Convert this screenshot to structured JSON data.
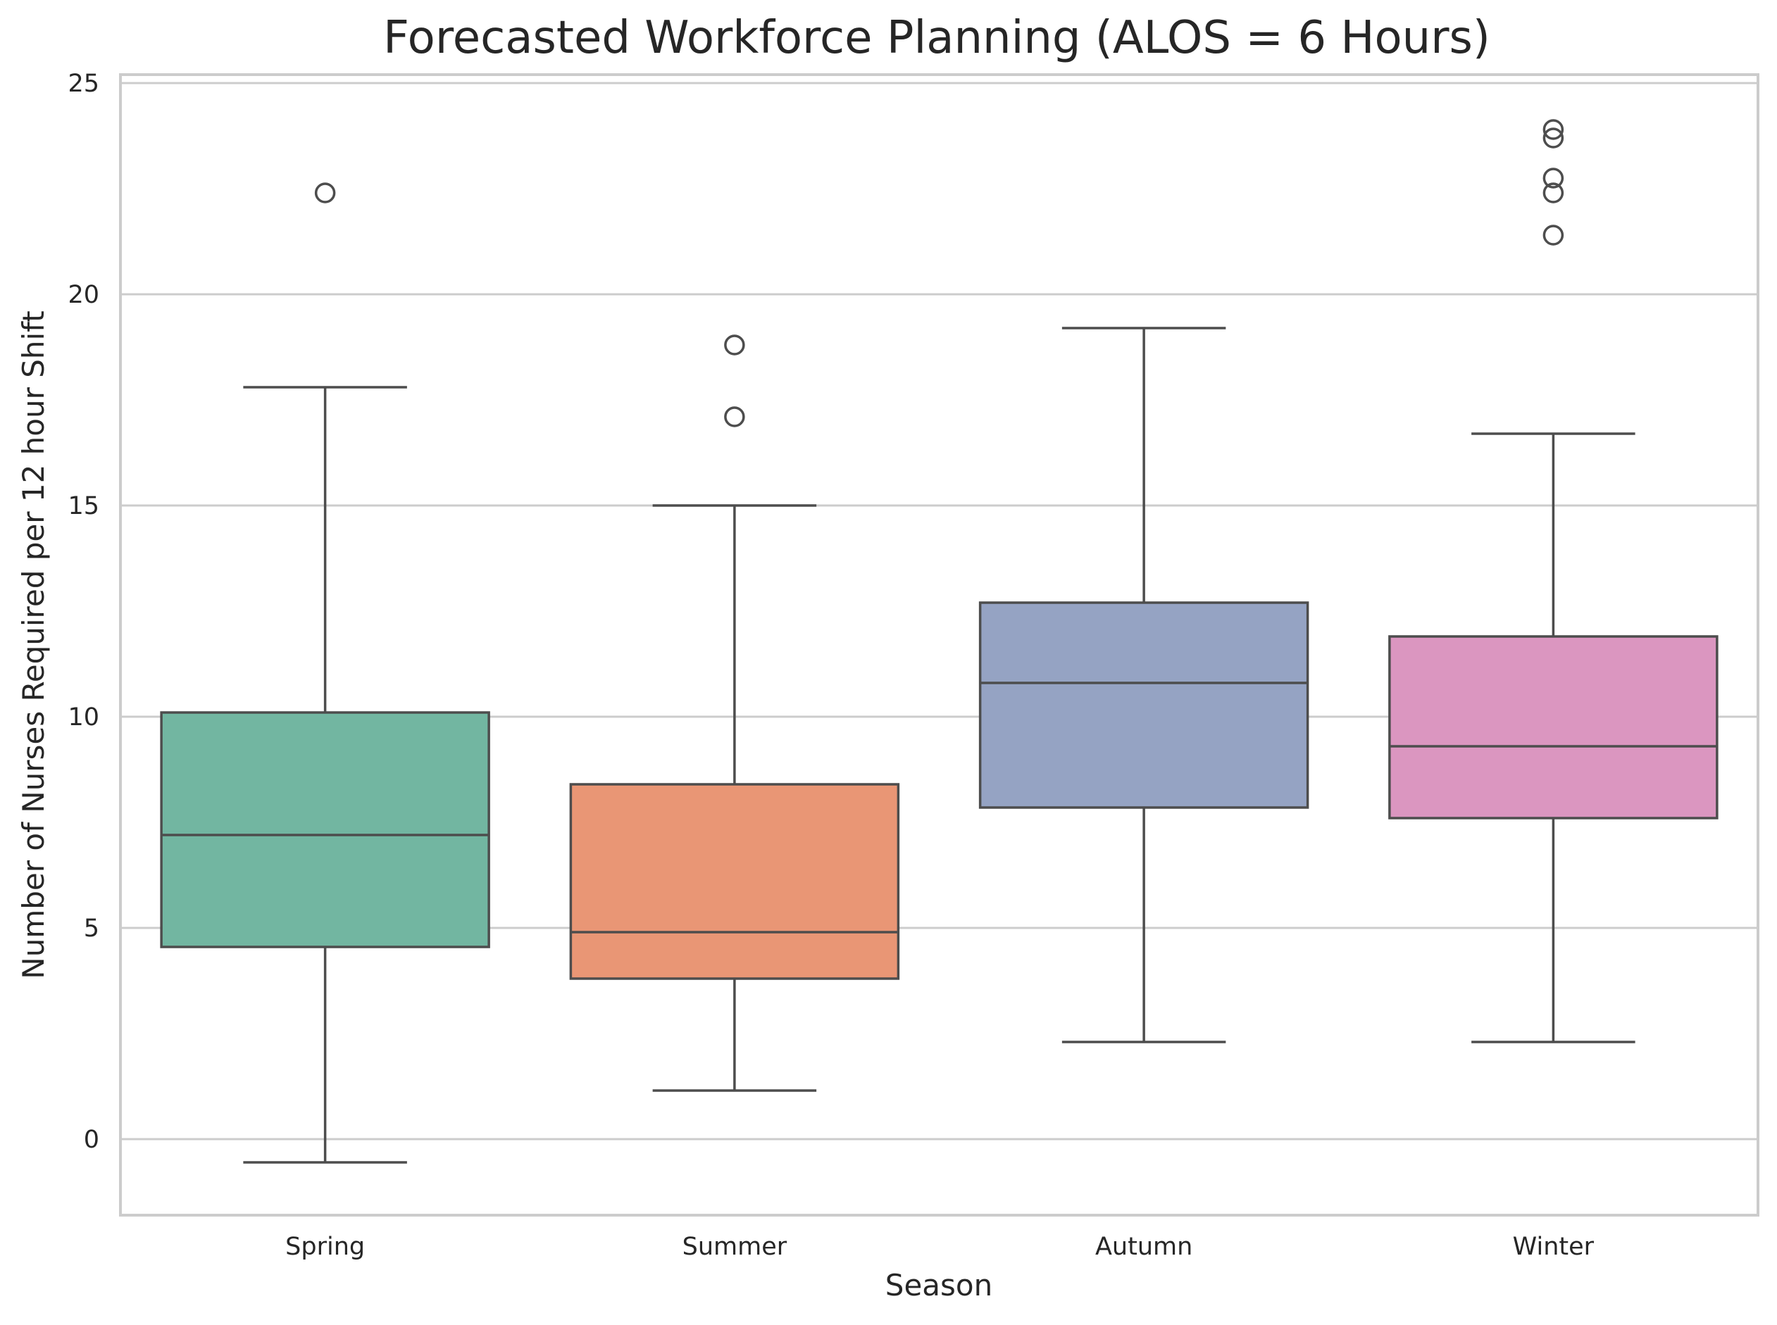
{
  "chart_data": {
    "type": "box",
    "title": "Forecasted Workforce Planning (ALOS = 6 Hours)",
    "xlabel": "Season",
    "ylabel": "Number of Nurses Required per 12 hour Shift",
    "ylim": [
      -1.8,
      25.2
    ],
    "yticks": [
      0,
      5,
      10,
      15,
      20,
      25
    ],
    "grid": true,
    "categories": [
      "Spring",
      "Summer",
      "Autumn",
      "Winter"
    ],
    "boxes": [
      {
        "name": "Spring",
        "color": "#72b6a1",
        "whisker_low": -0.55,
        "q1": 4.55,
        "median": 7.2,
        "q3": 10.1,
        "whisker_high": 17.8,
        "outliers": [
          22.4
        ]
      },
      {
        "name": "Summer",
        "color": "#e99675",
        "whisker_low": 1.15,
        "q1": 3.8,
        "median": 4.9,
        "q3": 8.4,
        "whisker_high": 15.0,
        "outliers": [
          17.1,
          18.8
        ]
      },
      {
        "name": "Autumn",
        "color": "#95a3c3",
        "whisker_low": 2.3,
        "q1": 7.85,
        "median": 10.8,
        "q3": 12.7,
        "whisker_high": 19.2,
        "outliers": []
      },
      {
        "name": "Winter",
        "color": "#db96c0",
        "whisker_low": 2.3,
        "q1": 7.6,
        "median": 9.3,
        "q3": 11.9,
        "whisker_high": 16.7,
        "outliers": [
          21.4,
          22.4,
          22.75,
          23.7,
          23.9
        ]
      }
    ]
  }
}
